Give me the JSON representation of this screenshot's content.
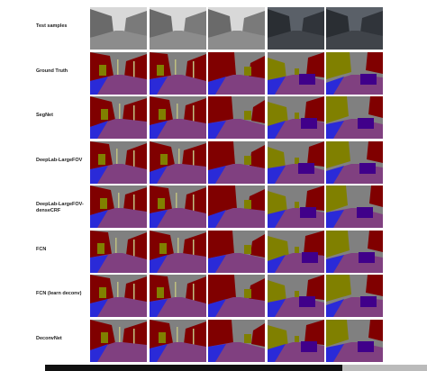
{
  "rows": [
    {
      "label": "Test samples"
    },
    {
      "label": "Ground Truth"
    },
    {
      "label": "SegNet"
    },
    {
      "label": "DeepLab-LargeFOV"
    },
    {
      "label": "DeepLab-LargeFOV-denseCRF"
    },
    {
      "label": "FCN"
    },
    {
      "label": "FCN (learn deconv)"
    },
    {
      "label": "DeconvNet"
    }
  ]
}
